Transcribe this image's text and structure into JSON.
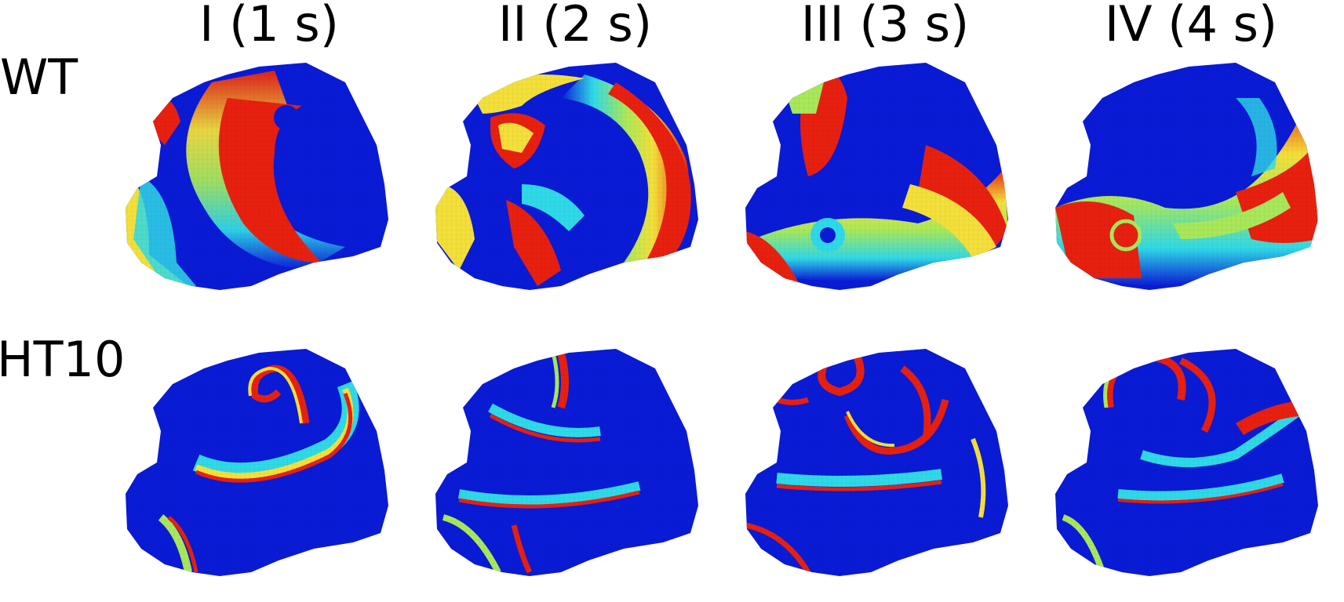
{
  "columns": [
    {
      "label": "I (1 s)"
    },
    {
      "label": "II (2 s)"
    },
    {
      "label": "III (3 s)"
    },
    {
      "label": "IV (4 s)"
    }
  ],
  "rows": [
    {
      "label": "WT"
    },
    {
      "label": "HT10"
    }
  ],
  "colormap": {
    "low": "#0a1bd6",
    "mid_low": "#2fd9e8",
    "mid": "#a8e85a",
    "mid_high": "#f4e03a",
    "high": "#e8200f"
  }
}
